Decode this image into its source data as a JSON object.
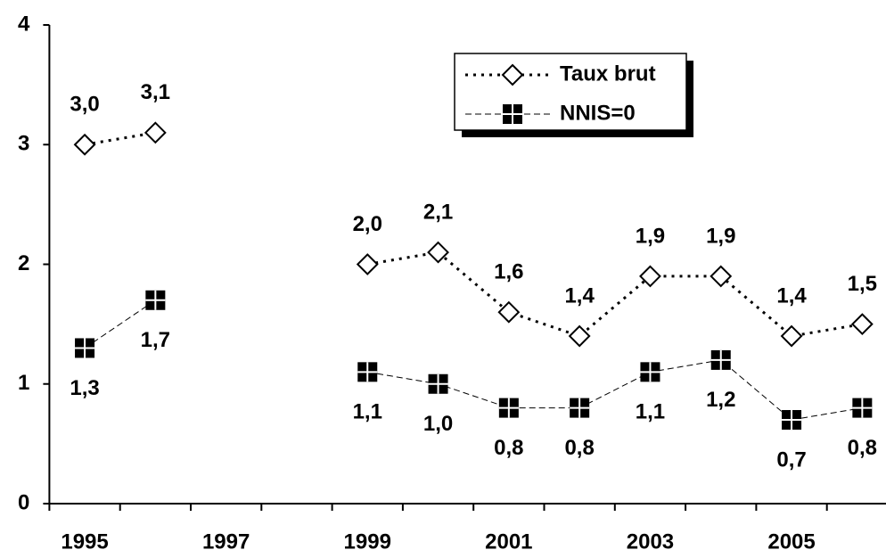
{
  "chart_data": {
    "type": "line",
    "categories": [
      "1995",
      null,
      "1997",
      null,
      "1999",
      null,
      "2001",
      null,
      "2003",
      null,
      "2005",
      null
    ],
    "series": [
      {
        "name": "Taux brut",
        "color": "#000000",
        "marker": "diamond",
        "line": "dotted",
        "values": [
          3.0,
          3.1,
          null,
          null,
          2.0,
          2.1,
          1.6,
          1.4,
          1.9,
          1.9,
          1.4,
          1.5
        ],
        "value_labels": [
          "3,0",
          "3,1",
          null,
          null,
          "2,0",
          "2,1",
          "1,6",
          "1,4",
          "1,9",
          "1,9",
          "1,4",
          "1,5"
        ]
      },
      {
        "name": "NNIS=0",
        "color": "#000000",
        "marker": "square",
        "line": "dashed",
        "values": [
          1.3,
          1.7,
          null,
          null,
          1.1,
          1.0,
          0.8,
          0.8,
          1.1,
          1.2,
          0.7,
          0.8
        ],
        "value_labels": [
          "1,3",
          "1,7",
          null,
          null,
          "1,1",
          "1,0",
          "0,8",
          "0,8",
          "1,1",
          "1,2",
          "0,7",
          "0,8"
        ]
      }
    ],
    "ylim": [
      0,
      4
    ],
    "yticks": [
      0,
      1,
      2,
      3,
      4
    ],
    "grid": false,
    "legend": "top-right"
  }
}
